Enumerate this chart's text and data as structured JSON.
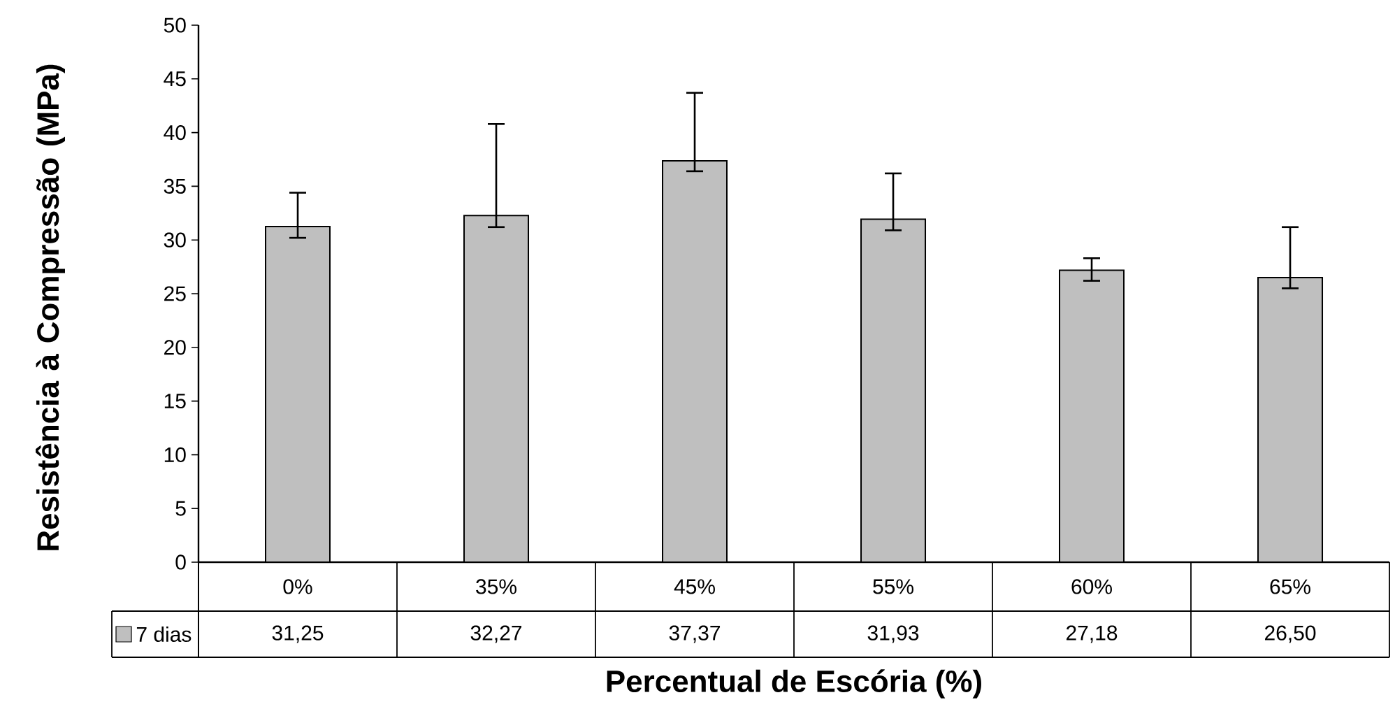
{
  "chart_data": {
    "type": "bar",
    "xlabel": "Percentual de Escória (%)",
    "ylabel": "Resistência à Compressão (MPa)",
    "categories": [
      "0%",
      "35%",
      "45%",
      "55%",
      "60%",
      "65%"
    ],
    "series": [
      {
        "name": "7 dias",
        "color": "#bfbfbf",
        "values": [
          31.25,
          32.27,
          37.37,
          31.93,
          27.18,
          26.5
        ],
        "errors": [
          [
            30.2,
            34.4
          ],
          [
            31.2,
            40.8
          ],
          [
            36.4,
            43.7
          ],
          [
            30.9,
            36.2
          ],
          [
            26.2,
            28.3
          ],
          [
            25.5,
            31.2
          ]
        ],
        "value_labels": [
          "31,25",
          "32,27",
          "37,37",
          "31,93",
          "27,18",
          "26,50"
        ]
      }
    ],
    "ylim": [
      0,
      50
    ],
    "yticks": [
      0,
      5,
      10,
      15,
      20,
      25,
      30,
      35,
      40,
      45,
      50
    ],
    "grid": false,
    "legend": "bottom"
  }
}
